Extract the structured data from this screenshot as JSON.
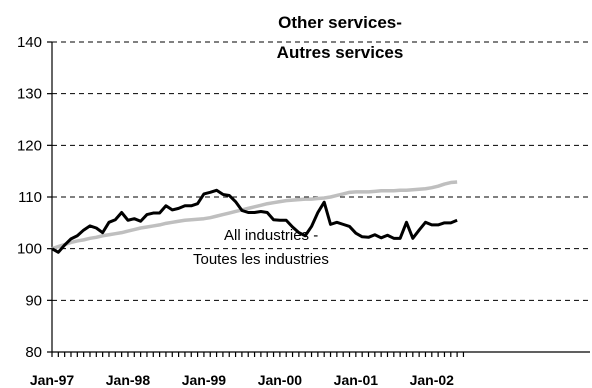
{
  "chart_data": {
    "type": "line",
    "title": "Other services-",
    "subtitle": "Autres services",
    "xlabel": "",
    "ylabel": "",
    "ylim": [
      80,
      140
    ],
    "yticks": [
      80,
      90,
      100,
      110,
      120,
      130,
      140
    ],
    "xtick_labels": [
      "Jan-97",
      "Jan-98",
      "Jan-99",
      "Jan-00",
      "Jan-01",
      "Jan-02"
    ],
    "grid": true,
    "annotation": [
      "All industries -",
      "Toutes les industries"
    ],
    "series": [
      {
        "key": "other_services",
        "color": "#000000",
        "values": [
          100.0,
          99.3,
          100.7,
          101.9,
          102.5,
          103.6,
          104.4,
          104.0,
          103.1,
          105.1,
          105.6,
          107.0,
          105.5,
          105.8,
          105.3,
          106.6,
          106.9,
          106.9,
          108.3,
          107.5,
          107.8,
          108.3,
          108.3,
          108.7,
          110.6,
          110.9,
          111.3,
          110.5,
          110.3,
          109.1,
          107.4,
          107.0,
          107.0,
          107.2,
          107.0,
          105.6,
          105.5,
          105.5,
          104.2,
          103.1,
          102.5,
          104.3,
          107.0,
          109.0,
          104.7,
          105.1,
          104.7,
          104.3,
          103.0,
          102.3,
          102.2,
          102.7,
          102.1,
          102.6,
          102.0,
          102.0,
          105.1,
          102.0,
          103.6,
          105.1,
          104.6,
          104.6,
          105.0,
          105.0,
          105.5
        ]
      },
      {
        "key": "all_industries",
        "color": "#bfbfbf",
        "values": [
          100.0,
          100.4,
          100.8,
          101.2,
          101.5,
          101.7,
          102.0,
          102.2,
          102.5,
          102.7,
          102.9,
          103.1,
          103.4,
          103.7,
          104.0,
          104.2,
          104.4,
          104.6,
          104.9,
          105.1,
          105.3,
          105.5,
          105.6,
          105.7,
          105.8,
          106.0,
          106.3,
          106.6,
          106.9,
          107.2,
          107.5,
          107.8,
          108.1,
          108.4,
          108.7,
          108.9,
          109.1,
          109.3,
          109.4,
          109.5,
          109.6,
          109.6,
          109.7,
          109.8,
          110.0,
          110.3,
          110.6,
          110.9,
          111.0,
          111.0,
          111.0,
          111.1,
          111.2,
          111.2,
          111.2,
          111.3,
          111.3,
          111.4,
          111.5,
          111.6,
          111.8,
          112.1,
          112.5,
          112.8,
          112.9
        ]
      }
    ]
  }
}
